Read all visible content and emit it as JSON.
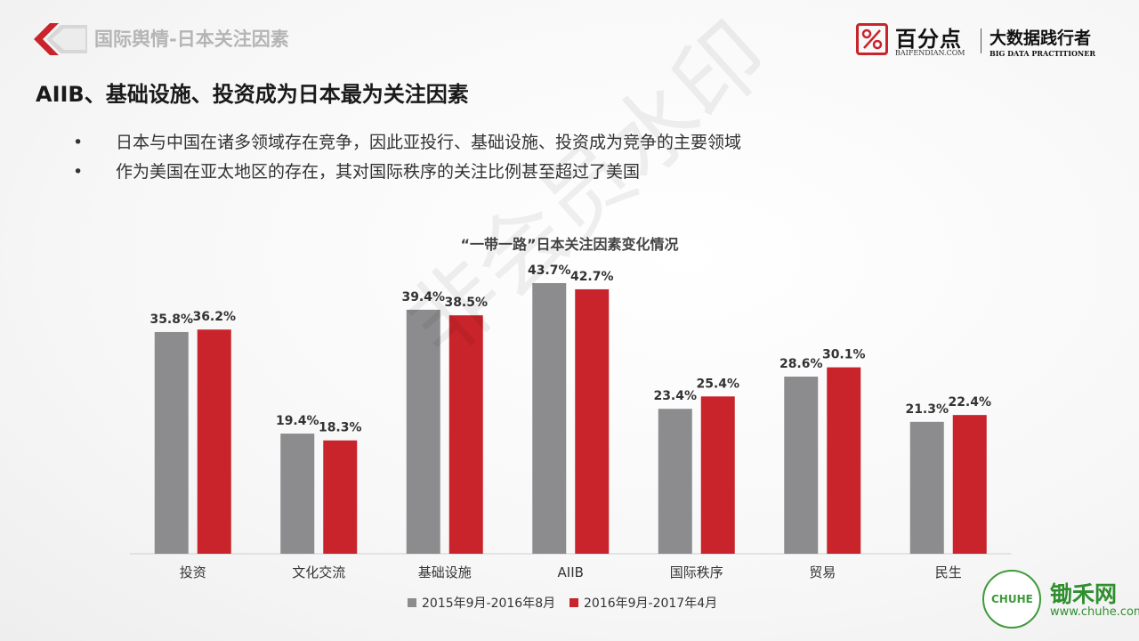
{
  "header": {
    "title": "国际舆情-日本关注因素"
  },
  "brand": {
    "name": "百分点",
    "url": "BAIFENDIAN.COM",
    "slogan": "大数据践行者",
    "slogan_en": "BIG DATA PRACTITIONER"
  },
  "page_title": "AIIB、基础设施、投资成为日本最为关注因素",
  "bullets": [
    "日本与中国在诸多领域存在竞争，因此亚投行、基础设施、投资成为竞争的主要领域",
    "作为美国在亚太地区的存在，其对国际秩序的关注比例甚至超过了美国"
  ],
  "watermark": "非会员水印",
  "footer_logo": {
    "badge": "CHUHE",
    "name": "锄禾网",
    "url": "www.chuhe.com"
  },
  "colors": {
    "series1": "#8c8c8e",
    "series2": "#c9242b",
    "brand_red": "#c9242b"
  },
  "chart_data": {
    "type": "bar",
    "title": "“一带一路”日本关注因素变化情况",
    "categories": [
      "投资",
      "文化交流",
      "基础设施",
      "AIIB",
      "国际秩序",
      "贸易",
      "民生"
    ],
    "series": [
      {
        "name": "2015年9月-2016年8月",
        "values": [
          35.8,
          19.4,
          39.4,
          43.7,
          23.4,
          28.6,
          21.3
        ],
        "labels": [
          "35.8%",
          "19.4%",
          "39.4%",
          "43.7%",
          "23.4%",
          "28.6%",
          "21.3%"
        ]
      },
      {
        "name": "2016年9月-2017年4月",
        "values": [
          36.2,
          18.3,
          38.5,
          42.7,
          25.4,
          30.1,
          22.4
        ],
        "labels": [
          "36.2%",
          "18.3%",
          "38.5%",
          "42.7%",
          "25.4%",
          "30.1%",
          "22.4%"
        ]
      }
    ],
    "ylim": [
      0,
      46
    ],
    "legend": "bottom",
    "grid": false
  }
}
